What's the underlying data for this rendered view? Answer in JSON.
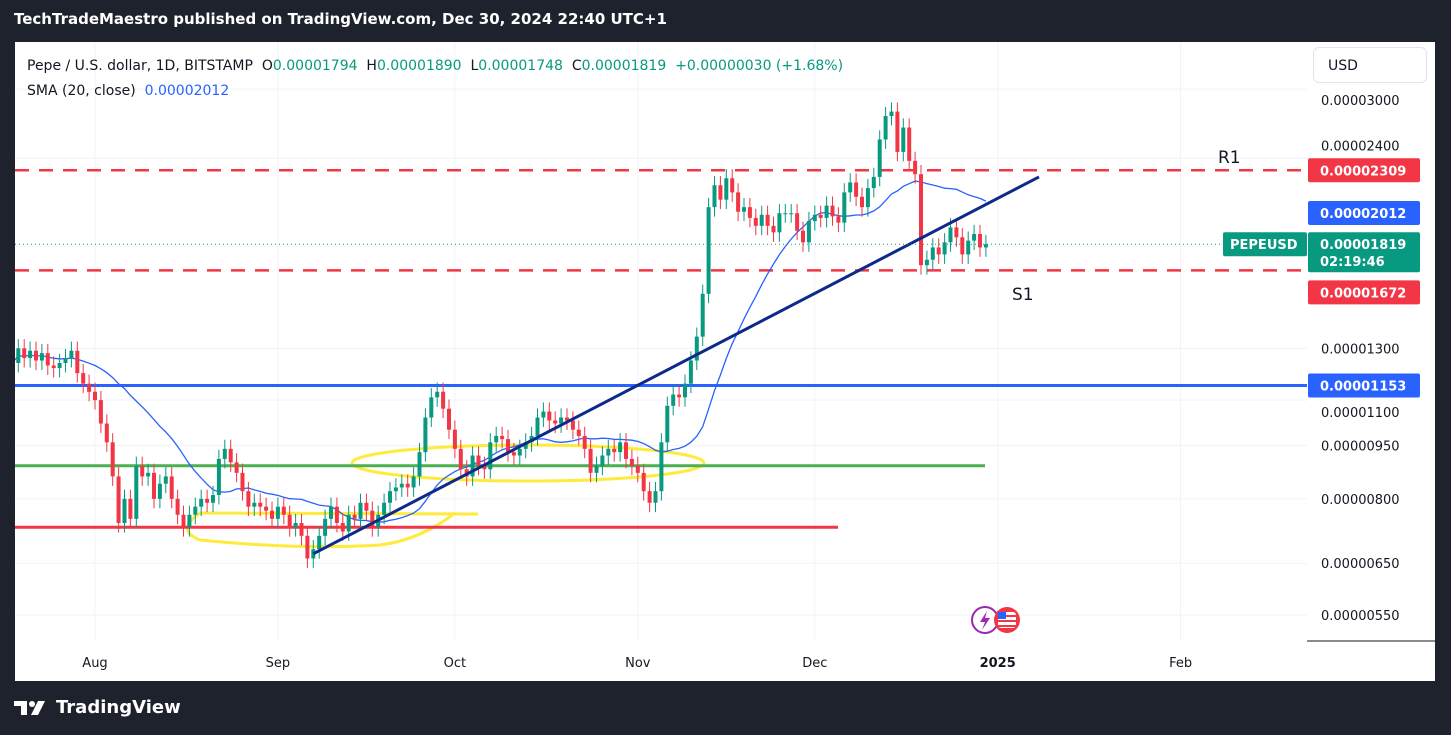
{
  "header": {
    "publish_line": "TechTradeMaestro published on TradingView.com, Dec 30, 2024 22:40 UTC+1"
  },
  "legend": {
    "symbol": "Pepe / U.S. dollar, 1D, BITSTAMP",
    "o_label": "O",
    "o": "0.00001794",
    "h_label": "H",
    "h": "0.00001890",
    "l_label": "L",
    "l": "0.00001748",
    "c_label": "C",
    "c": "0.00001819",
    "change": "+0.00000030 (+1.68%)",
    "sma_label": "SMA (20, close)",
    "sma_value": "0.00002012"
  },
  "currency_button": "USD",
  "footer": {
    "brand": "TradingView"
  },
  "colors": {
    "up": "#089981",
    "down": "#f23645",
    "sma": "#2962ff",
    "resistance": "#f23645",
    "support_blue": "#2962ff",
    "green_line": "#4caf50",
    "trendline": "#0d2a8a",
    "highlight": "#ffeb3b"
  },
  "chart_data": {
    "type": "candlestick",
    "title": "",
    "y_scale": "log",
    "grid": true,
    "start_date": "2024-07-18",
    "end_date": "2024-12-30",
    "closes": [
      1.24e-05,
      1.3e-05,
      1.26e-05,
      1.29e-05,
      1.25e-05,
      1.28e-05,
      1.23e-05,
      1.22e-05,
      1.24e-05,
      1.26e-05,
      1.29e-05,
      1.2e-05,
      1.16e-05,
      1.13e-05,
      1.1e-05,
      1.02e-05,
      9.6e-06,
      8.6e-06,
      7.4e-06,
      8e-06,
      7.5e-06,
      8.9e-06,
      8.6e-06,
      8.7e-06,
      8e-06,
      8.4e-06,
      8.6e-06,
      8e-06,
      7.6e-06,
      7.3e-06,
      7.6e-06,
      7.8e-06,
      8e-06,
      7.9e-06,
      8.1e-06,
      9.1e-06,
      9.4e-06,
      9e-06,
      8.7e-06,
      8.2e-06,
      7.8e-06,
      7.9e-06,
      7.8e-06,
      7.7e-06,
      7.5e-06,
      7.8e-06,
      7.6e-06,
      7.3e-06,
      7.4e-06,
      7.1e-06,
      6.6e-06,
      6.8e-06,
      7.1e-06,
      7.5e-06,
      7.8e-06,
      7.4e-06,
      7.2e-06,
      7.6e-06,
      7.5e-06,
      7.9e-06,
      7.7e-06,
      7.3e-06,
      7.6e-06,
      7.9e-06,
      8.2e-06,
      8.3e-06,
      8.4e-06,
      8.3e-06,
      8.6e-06,
      9.3e-06,
      1.04e-05,
      1.11e-05,
      1.13e-05,
      1.07e-05,
      1e-05,
      9.4e-06,
      8.8e-06,
      8.6e-06,
      9.2e-06,
      8.9e-06,
      8.8e-06,
      9.6e-06,
      9.8e-06,
      9.7e-06,
      9.3e-06,
      9.2e-06,
      9.4e-06,
      9.6e-06,
      9.8e-06,
      1.04e-05,
      1.06e-05,
      1.03e-05,
      1.02e-05,
      1.04e-05,
      1.03e-05,
      1e-05,
      9.8e-06,
      9.4e-06,
      8.7e-06,
      8.9e-06,
      9.2e-06,
      9.4e-06,
      9.3e-06,
      9.6e-06,
      9.1e-06,
      8.9e-06,
      8.7e-06,
      8.2e-06,
      7.9e-06,
      8.2e-06,
      9.6e-06,
      1.08e-05,
      1.12e-05,
      1.11e-05,
      1.16e-05,
      1.25e-05,
      1.35e-05,
      1.55e-05,
      2.05e-05,
      2.2e-05,
      2.1e-05,
      2.25e-05,
      2.15e-05,
      2.02e-05,
      2.05e-05,
      1.98e-05,
      1.93e-05,
      2e-05,
      1.93e-05,
      1.89e-05,
      2.01e-05,
      2.01e-05,
      2.01e-05,
      1.9e-05,
      1.83e-05,
      1.96e-05,
      2e-05,
      1.98e-05,
      2.06e-05,
      1.99e-05,
      1.95e-05,
      2.15e-05,
      2.22e-05,
      2.12e-05,
      2.05e-05,
      2.18e-05,
      2.26e-05,
      2.55e-05,
      2.75e-05,
      2.79e-05,
      2.45e-05,
      2.65e-05,
      2.38e-05,
      2.28e-05,
      1.7e-05,
      1.73e-05,
      1.8e-05,
      1.76e-05,
      1.83e-05,
      1.92e-05,
      1.86e-05,
      1.76e-05,
      1.84e-05,
      1.88e-05,
      1.8e-05,
      1.819e-05
    ],
    "sma_period": 20,
    "x_ticks": [
      "Aug",
      "Sep",
      "Oct",
      "Nov",
      "Dec",
      "2025",
      "Feb"
    ],
    "y_ticks": [
      "0.00003000",
      "0.00002400",
      "0.00001300",
      "0.00001100",
      "0.00000950",
      "0.00000800",
      "0.00000650",
      "0.00000550"
    ],
    "levels": [
      {
        "label": "R1",
        "value": "0.00002309",
        "style": "dashed",
        "color": "#f23645"
      },
      {
        "label": "S1",
        "value": "0.00001672",
        "style": "dashed",
        "color": "#f23645"
      },
      {
        "label": "",
        "value": "0.00001153",
        "style": "solid",
        "color": "#2962ff"
      },
      {
        "label": "",
        "value": "0.0000089",
        "style": "solid",
        "color": "#4caf50"
      },
      {
        "label": "",
        "value": "0.0000073",
        "style": "solid",
        "color": "#f23645"
      }
    ],
    "trendline": {
      "from": [
        "2024-09-07",
        6.7e-06
      ],
      "to": [
        "2025-01-08",
        2.26e-05
      ]
    },
    "price_tags": {
      "sma": "0.00002012",
      "last": "0.00001819",
      "symbol": "PEPEUSD",
      "countdown": "02:19:46"
    }
  }
}
